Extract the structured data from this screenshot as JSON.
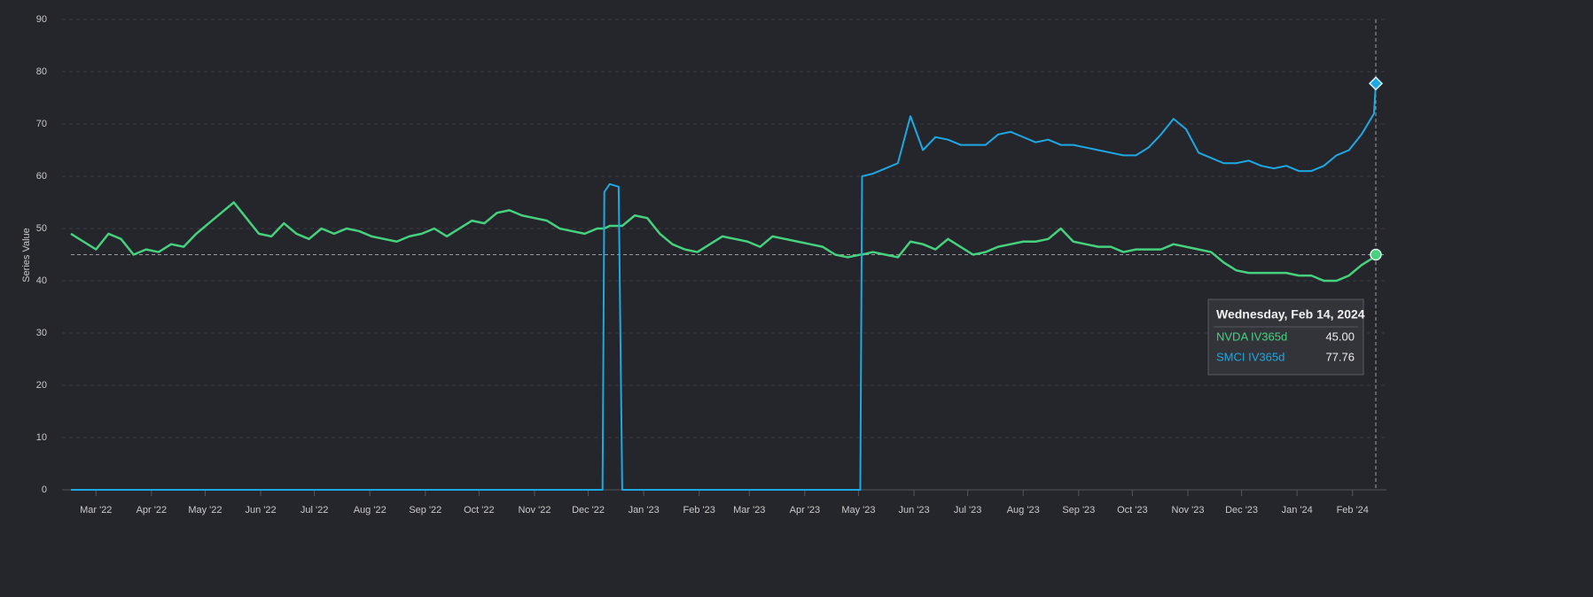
{
  "chart_data": {
    "type": "line",
    "y_label": "Series Value",
    "ylim": [
      0,
      90
    ],
    "yticks": [
      0,
      10,
      20,
      30,
      40,
      50,
      60,
      70,
      80,
      90
    ],
    "grid": true,
    "xlim": [
      "2022-02-15",
      "2024-02-14"
    ],
    "xticks": [
      {
        "value": "2022-03-01",
        "label": "Mar '22"
      },
      {
        "value": "2022-04-01",
        "label": "Apr '22"
      },
      {
        "value": "2022-05-01",
        "label": "May '22"
      },
      {
        "value": "2022-06-01",
        "label": "Jun '22"
      },
      {
        "value": "2022-07-01",
        "label": "Jul '22"
      },
      {
        "value": "2022-08-01",
        "label": "Aug '22"
      },
      {
        "value": "2022-09-01",
        "label": "Sep '22"
      },
      {
        "value": "2022-10-01",
        "label": "Oct '22"
      },
      {
        "value": "2022-11-01",
        "label": "Nov '22"
      },
      {
        "value": "2022-12-01",
        "label": "Dec '22"
      },
      {
        "value": "2023-01-01",
        "label": "Jan '23"
      },
      {
        "value": "2023-02-01",
        "label": "Feb '23"
      },
      {
        "value": "2023-03-01",
        "label": "Mar '23"
      },
      {
        "value": "2023-04-01",
        "label": "Apr '23"
      },
      {
        "value": "2023-05-01",
        "label": "May '23"
      },
      {
        "value": "2023-06-01",
        "label": "Jun '23"
      },
      {
        "value": "2023-07-01",
        "label": "Jul '23"
      },
      {
        "value": "2023-08-01",
        "label": "Aug '23"
      },
      {
        "value": "2023-09-01",
        "label": "Sep '23"
      },
      {
        "value": "2023-10-01",
        "label": "Oct '23"
      },
      {
        "value": "2023-11-01",
        "label": "Nov '23"
      },
      {
        "value": "2023-12-01",
        "label": "Dec '23"
      },
      {
        "value": "2024-01-01",
        "label": "Jan '24"
      },
      {
        "value": "2024-02-01",
        "label": "Feb '24"
      }
    ],
    "x": [
      "2022-02-15",
      "2022-02-22",
      "2022-03-01",
      "2022-03-08",
      "2022-03-15",
      "2022-03-22",
      "2022-03-29",
      "2022-04-05",
      "2022-04-12",
      "2022-04-19",
      "2022-04-26",
      "2022-05-03",
      "2022-05-10",
      "2022-05-17",
      "2022-05-24",
      "2022-05-31",
      "2022-06-07",
      "2022-06-14",
      "2022-06-21",
      "2022-06-28",
      "2022-07-05",
      "2022-07-12",
      "2022-07-19",
      "2022-07-26",
      "2022-08-02",
      "2022-08-09",
      "2022-08-16",
      "2022-08-23",
      "2022-08-30",
      "2022-09-06",
      "2022-09-13",
      "2022-09-20",
      "2022-09-27",
      "2022-10-04",
      "2022-10-11",
      "2022-10-18",
      "2022-10-25",
      "2022-11-01",
      "2022-11-08",
      "2022-11-15",
      "2022-11-22",
      "2022-11-29",
      "2022-12-06",
      "2022-12-09",
      "2022-12-10",
      "2022-12-13",
      "2022-12-18",
      "2022-12-20",
      "2022-12-27",
      "2023-01-03",
      "2023-01-10",
      "2023-01-17",
      "2023-01-24",
      "2023-01-31",
      "2023-02-07",
      "2023-02-14",
      "2023-02-21",
      "2023-02-28",
      "2023-03-07",
      "2023-03-14",
      "2023-03-21",
      "2023-03-28",
      "2023-04-04",
      "2023-04-11",
      "2023-04-18",
      "2023-04-25",
      "2023-05-02",
      "2023-05-03",
      "2023-05-09",
      "2023-05-16",
      "2023-05-23",
      "2023-05-30",
      "2023-06-06",
      "2023-06-13",
      "2023-06-20",
      "2023-06-27",
      "2023-07-04",
      "2023-07-11",
      "2023-07-18",
      "2023-07-25",
      "2023-08-01",
      "2023-08-08",
      "2023-08-15",
      "2023-08-22",
      "2023-08-29",
      "2023-09-05",
      "2023-09-12",
      "2023-09-19",
      "2023-09-26",
      "2023-10-03",
      "2023-10-10",
      "2023-10-17",
      "2023-10-24",
      "2023-10-31",
      "2023-11-07",
      "2023-11-14",
      "2023-11-21",
      "2023-11-28",
      "2023-12-05",
      "2023-12-12",
      "2023-12-19",
      "2023-12-26",
      "2024-01-02",
      "2024-01-09",
      "2024-01-16",
      "2024-01-23",
      "2024-01-30",
      "2024-02-06",
      "2024-02-13",
      "2024-02-14"
    ],
    "series": [
      {
        "name": "NVDA IV365d",
        "color": "#46d17f",
        "marker": "circle",
        "values": [
          49,
          47.5,
          46,
          49,
          48,
          45,
          46,
          45.5,
          47,
          46.5,
          49,
          51,
          53,
          55,
          52,
          49,
          48.5,
          51,
          49,
          48,
          50,
          49,
          50,
          49.5,
          48.5,
          48,
          47.5,
          48.5,
          49,
          50,
          48.5,
          50,
          51.5,
          51,
          53,
          53.5,
          52.5,
          52,
          51.5,
          50,
          49.5,
          49,
          50,
          50,
          50,
          50.5,
          50.5,
          50.5,
          52.5,
          52,
          49,
          47,
          46,
          45.5,
          47,
          48.5,
          48,
          47.5,
          46.5,
          48.5,
          48,
          47.5,
          47,
          46.5,
          45,
          44.5,
          45,
          45,
          45.5,
          45,
          44.5,
          47.5,
          47,
          46,
          48,
          46.5,
          45,
          45.5,
          46.5,
          47,
          47.5,
          47.5,
          48,
          50,
          47.5,
          47,
          46.5,
          46.5,
          45.5,
          46,
          46,
          46,
          47,
          46.5,
          46,
          45.5,
          43.5,
          42,
          41.5,
          41.5,
          41.5,
          41.5,
          41,
          41,
          40,
          40,
          41,
          43,
          44.5,
          45
        ]
      },
      {
        "name": "SMCI IV365d",
        "color": "#1ea8e3",
        "marker": "diamond",
        "values": [
          0,
          0,
          0,
          0,
          0,
          0,
          0,
          0,
          0,
          0,
          0,
          0,
          0,
          0,
          0,
          0,
          0,
          0,
          0,
          0,
          0,
          0,
          0,
          0,
          0,
          0,
          0,
          0,
          0,
          0,
          0,
          0,
          0,
          0,
          0,
          0,
          0,
          0,
          0,
          0,
          0,
          0,
          0,
          0,
          57,
          58.5,
          58,
          0,
          0,
          0,
          0,
          0,
          0,
          0,
          0,
          0,
          0,
          0,
          0,
          0,
          0,
          0,
          0,
          0,
          0,
          0,
          0,
          60,
          60.5,
          61.5,
          62.5,
          71.5,
          65,
          67.5,
          67,
          66,
          66,
          66,
          68,
          68.5,
          67.5,
          66.5,
          67,
          66,
          66,
          65.5,
          65,
          64.5,
          64,
          64,
          65.5,
          68,
          71,
          69,
          64.5,
          63.5,
          62.5,
          62.5,
          63,
          62,
          61.5,
          62,
          61,
          61,
          62,
          64,
          65,
          68,
          72,
          77.76
        ]
      }
    ],
    "tooltip": {
      "title": "Wednesday, Feb 14, 2024",
      "labels": [
        "45.00",
        "77.76"
      ]
    }
  }
}
